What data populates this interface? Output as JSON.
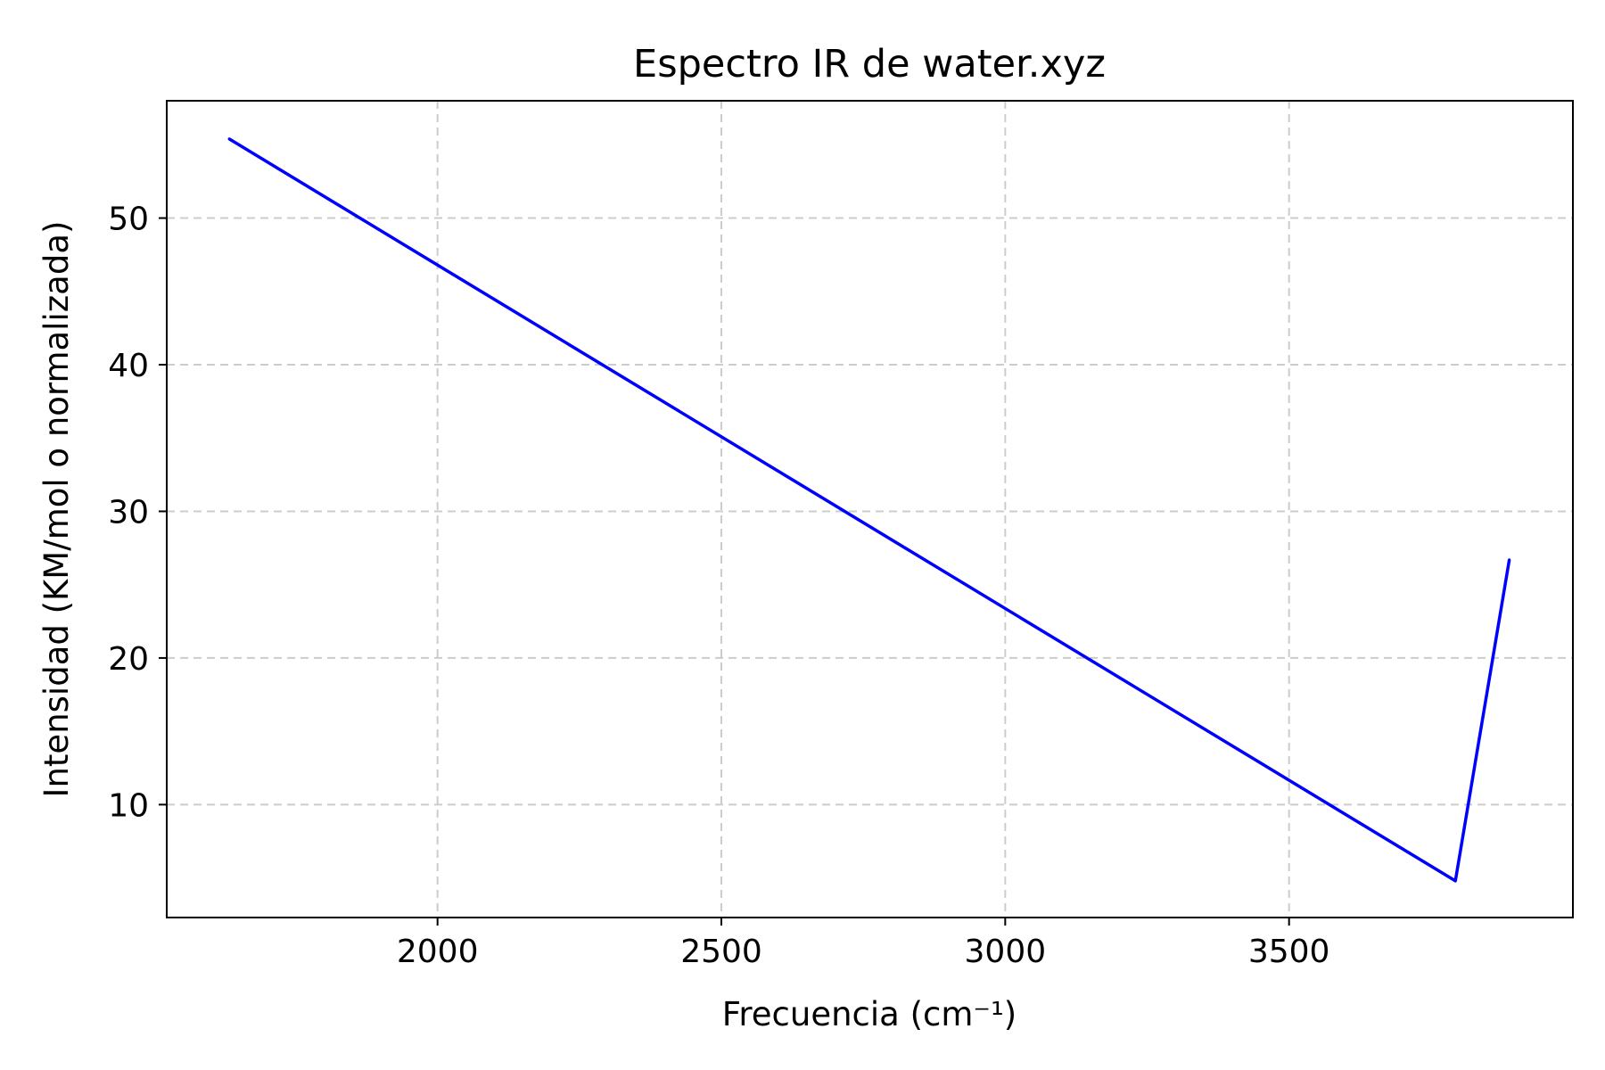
{
  "chart_data": {
    "type": "line",
    "title": "Espectro IR de water.xyz",
    "xlabel": "Frecuencia (cm⁻¹)",
    "ylabel": "Intensidad (KM/mol o normalizada)",
    "xlim": [
      1523,
      4000
    ],
    "ylim": [
      2.3,
      58
    ],
    "xticks": [
      2000,
      2500,
      3000,
      3500
    ],
    "yticks": [
      10,
      20,
      30,
      40,
      50
    ],
    "grid": true,
    "series": [
      {
        "color": "#0000ff",
        "x": [
          1633,
          3793,
          3888
        ],
        "y": [
          55.4,
          4.8,
          26.7
        ]
      }
    ]
  }
}
